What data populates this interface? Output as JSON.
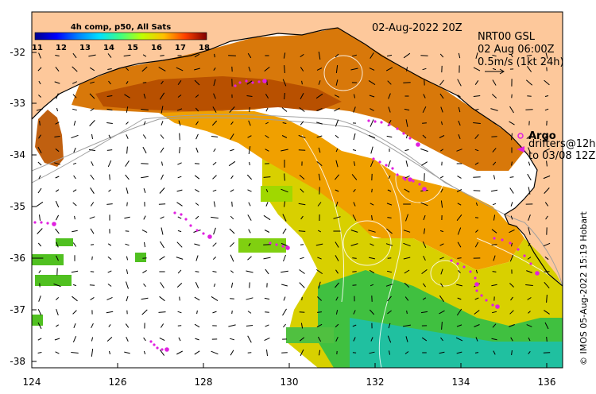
{
  "map": {
    "date_label": "02-Aug-2022 20Z",
    "product_label": "4h comp, p50, All Sats",
    "colorbar_ticks": [
      "11",
      "12",
      "13",
      "14",
      "15",
      "16",
      "17",
      "18"
    ],
    "colorbar_colors": [
      "#00008f",
      "#0000ff",
      "#0080ff",
      "#00e0ff",
      "#40ff80",
      "#c0ff00",
      "#ffc000",
      "#ff4000",
      "#800000"
    ],
    "current_source": "NRT00 GSL",
    "current_time": "02 Aug 06:00Z",
    "scale_label": "0.5m/s (1kt 24h)",
    "argo_label": "Argo",
    "drifters_line1": "drifters@12h",
    "drifters_line2": "to 03/08 12Z",
    "credit": "© IMOS 05-Aug-2022 15:19 Hobart",
    "x_ticks": [
      "124",
      "126",
      "128",
      "130",
      "132",
      "134",
      "136"
    ],
    "y_ticks": [
      "-32",
      "-33",
      "-34",
      "-35",
      "-36",
      "-37",
      "-38"
    ],
    "colors": {
      "land": "#fdc89b",
      "no_data": "#ffffff",
      "drifter": "#e020e0",
      "arrow": "#000000"
    }
  }
}
